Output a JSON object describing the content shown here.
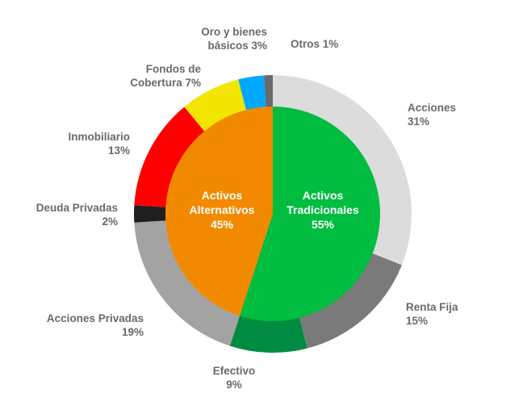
{
  "chart_data": {
    "type": "pie",
    "outer_ring": [
      {
        "label": "Acciones",
        "value": "31%",
        "color": "#dcdcdc"
      },
      {
        "label": "Renta Fija",
        "value": "15%",
        "color": "#7a7a7a"
      },
      {
        "label": "Efectivo",
        "value": "9%",
        "color": "#008c40"
      },
      {
        "label": "Acciones Privadas",
        "value": "19%",
        "color": "#a3a3a3"
      },
      {
        "label": "Deuda Privadas",
        "value": "2%",
        "color": "#1f1f1f"
      },
      {
        "label": "Inmobiliario",
        "value": "13%",
        "color": "#ff0000"
      },
      {
        "label": "Fondos de Cobertura",
        "label_lines": [
          "Fondos de",
          "Cobertura 7%"
        ],
        "value": "7%",
        "color": "#f2e600"
      },
      {
        "label": "Oro y bienes básicos",
        "label_lines": [
          "Oro y bienes",
          "básicos 3%"
        ],
        "value": "3%",
        "color": "#00a8ff"
      },
      {
        "label": "Otros",
        "value": "1%",
        "color": "#6a6a6a"
      }
    ],
    "outer_values": [
      31,
      15,
      9,
      19,
      2,
      13,
      7,
      3,
      1
    ],
    "inner_ring": [
      {
        "label_lines": [
          "Activos",
          "Tradicionales"
        ],
        "value": "55%",
        "color": "#00bd40"
      },
      {
        "label_lines": [
          "Activos",
          "Alternativos"
        ],
        "value": "45%",
        "color": "#f28a00"
      }
    ],
    "inner_values": [
      55,
      45
    ]
  }
}
